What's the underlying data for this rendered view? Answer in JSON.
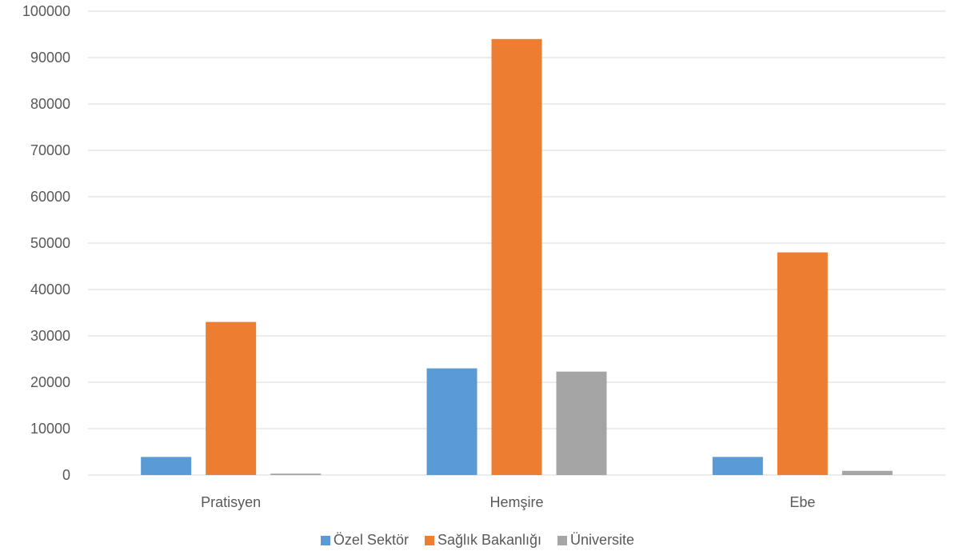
{
  "chart_data": {
    "type": "bar",
    "title": "",
    "xlabel": "",
    "ylabel": "",
    "categories": [
      "Pratisyen",
      "Hemşire",
      "Ebe"
    ],
    "ylim": [
      0,
      100000
    ],
    "yticks": [
      0,
      10000,
      20000,
      30000,
      40000,
      50000,
      60000,
      70000,
      80000,
      90000,
      100000
    ],
    "grid": true,
    "legend_position": "bottom",
    "series": [
      {
        "name": "Özel Sektör",
        "color": "#5B9BD5",
        "values": [
          3900,
          23000,
          3900
        ]
      },
      {
        "name": "Sağlık Bakanlığı",
        "color": "#ED7D31",
        "values": [
          33000,
          94000,
          48000
        ]
      },
      {
        "name": "Üniversite",
        "color": "#A5A5A5",
        "values": [
          300,
          22300,
          900
        ]
      }
    ]
  }
}
